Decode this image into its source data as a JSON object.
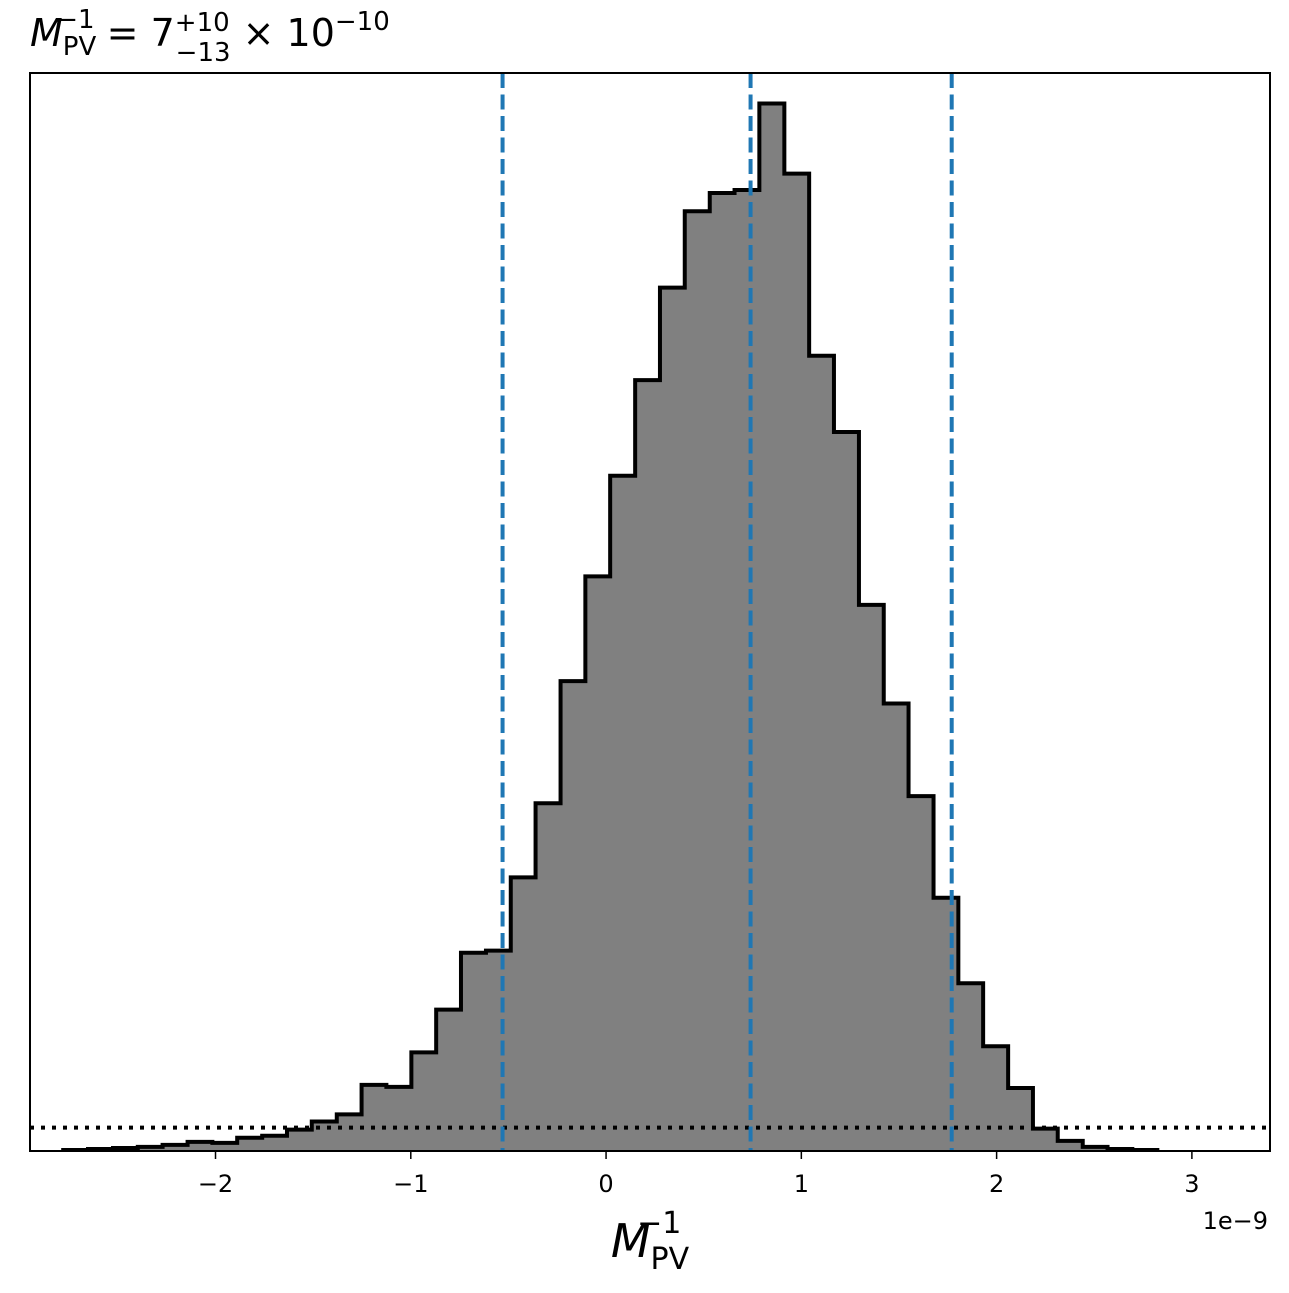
{
  "chart_data": {
    "type": "histogram",
    "title": {
      "lhs": "M",
      "lhs_sub": "PV",
      "lhs_sup": "−1",
      "equals": " = ",
      "median": "7",
      "plus": "+10",
      "minus": "−13",
      "times": " × 10",
      "exp": "−10"
    },
    "xlabel": {
      "base": "M",
      "sub": "PV",
      "sup": "−1"
    },
    "x_offset_text": "1e−9",
    "x_scale": 1e-09,
    "xlim": [
      -2.95,
      3.4
    ],
    "ylim": [
      0,
      1.06
    ],
    "x_ticks": [
      -2,
      -1,
      0,
      1,
      2,
      3
    ],
    "x_tick_labels": [
      "−2",
      "−1",
      "0",
      "1",
      "2",
      "3"
    ],
    "y_ticks_visible": false,
    "bins": {
      "edges": [
        -2.78,
        -2.653,
        -2.525,
        -2.398,
        -2.271,
        -2.143,
        -2.016,
        -1.889,
        -1.761,
        -1.634,
        -1.507,
        -1.379,
        -1.252,
        -1.125,
        -0.997,
        -0.87,
        -0.743,
        -0.615,
        -0.488,
        -0.361,
        -0.233,
        -0.106,
        0.021,
        0.149,
        0.276,
        0.403,
        0.531,
        0.658,
        0.785,
        0.913,
        1.04,
        1.167,
        1.295,
        1.422,
        1.549,
        1.677,
        1.804,
        1.931,
        2.059,
        2.186,
        2.313,
        2.441,
        2.568,
        2.695,
        2.823
      ],
      "heights": [
        0.001,
        0.002,
        0.003,
        0.004,
        0.006,
        0.009,
        0.008,
        0.013,
        0.015,
        0.021,
        0.029,
        0.036,
        0.065,
        0.063,
        0.097,
        0.139,
        0.195,
        0.197,
        0.269,
        0.342,
        0.462,
        0.565,
        0.664,
        0.758,
        0.849,
        0.924,
        0.942,
        0.945,
        1.03,
        0.961,
        0.782,
        0.707,
        0.537,
        0.44,
        0.349,
        0.249,
        0.165,
        0.103,
        0.062,
        0.022,
        0.01,
        0.004,
        0.002,
        0.001
      ]
    },
    "vlines": [
      -0.53,
      0.74,
      1.77
    ],
    "hline": 0.023,
    "colors": {
      "fill": "#808080",
      "edge": "#000000",
      "vline": "#1f77b4",
      "hline": "#000000"
    }
  }
}
